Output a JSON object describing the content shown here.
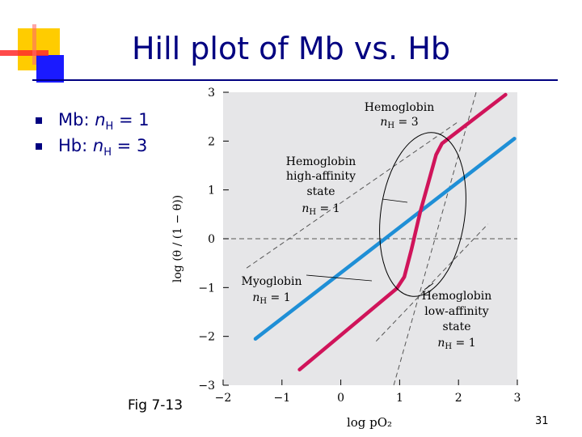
{
  "slide": {
    "title": "Hill plot of Mb vs. Hb",
    "bullets": [
      {
        "species": "Mb",
        "n_symbol": "n",
        "n_sub": "H",
        "equals": "= 1"
      },
      {
        "species": "Hb",
        "n_symbol": "n",
        "n_sub": "H",
        "equals": "= 3"
      }
    ],
    "caption": "Fig 7-13",
    "page_number": "31"
  },
  "colors": {
    "title": "#000080",
    "myoglobin": "#1f8fd6",
    "hemoglobin": "#d0145a",
    "plot_background": "#e6e6e8",
    "deco_yellow": "#ffcc00",
    "deco_blue": "#1a1aff",
    "deco_red": "#ff2a2a"
  },
  "chart_data": {
    "type": "line",
    "xlabel": "log pO₂",
    "ylabel": "log (θ / (1 − θ))",
    "xlim": [
      -2,
      3
    ],
    "ylim": [
      -3,
      3
    ],
    "x_ticks": [
      "−2",
      "−1",
      "0",
      "1",
      "2",
      "3"
    ],
    "y_ticks": [
      "3",
      "2",
      "1",
      "0",
      "−1",
      "−2",
      "−3"
    ],
    "grid": false,
    "series": [
      {
        "label_line1": "Myoglobin",
        "label_n": "n",
        "label_sub": "H",
        "label_eq": " = 1",
        "color": "#1f8fd6",
        "points": [
          [
            -1.45,
            -2.05
          ],
          [
            2.95,
            2.05
          ]
        ]
      },
      {
        "label_line1": "Hemoglobin",
        "label_n": "n",
        "label_sub": "H",
        "label_eq": " = 3",
        "color": "#d0145a",
        "points": [
          [
            -0.7,
            -2.68
          ],
          [
            0.95,
            -1.02
          ],
          [
            1.08,
            -0.78
          ],
          [
            1.2,
            -0.22
          ],
          [
            1.35,
            0.55
          ],
          [
            1.5,
            1.2
          ],
          [
            1.62,
            1.72
          ],
          [
            1.72,
            1.95
          ],
          [
            2.8,
            2.95
          ]
        ]
      }
    ],
    "reference_lines": [
      {
        "name": "Hemoglobin high-affinity state",
        "points": [
          [
            -1.6,
            -0.6
          ],
          [
            2.0,
            2.4
          ]
        ]
      },
      {
        "name": "Hemoglobin low-affinity state",
        "points": [
          [
            0.6,
            -2.1
          ],
          [
            2.5,
            0.3
          ]
        ]
      },
      {
        "name": "Hemoglobin",
        "points": [
          [
            0.9,
            -3.0
          ],
          [
            2.3,
            3.0
          ]
        ]
      },
      {
        "name": "log ratio zero",
        "points": [
          [
            -2,
            0
          ],
          [
            3,
            0
          ]
        ]
      }
    ],
    "annotations": {
      "hb_top": {
        "line1": "Hemoglobin",
        "n": "n",
        "sub": "H",
        "eq": " = 3"
      },
      "hb_high": {
        "line1": "Hemoglobin",
        "line2": "high-affinity",
        "line3": "state",
        "n": "n",
        "sub": "H",
        "eq": " = 1"
      },
      "mb": {
        "line1": "Myoglobin",
        "n": "n",
        "sub": "H",
        "eq": " = 1"
      },
      "hb_low": {
        "line1": "Hemoglobin",
        "line2": "low-affinity",
        "line3": "state",
        "n": "n",
        "sub": "H",
        "eq": " = 1"
      }
    }
  }
}
